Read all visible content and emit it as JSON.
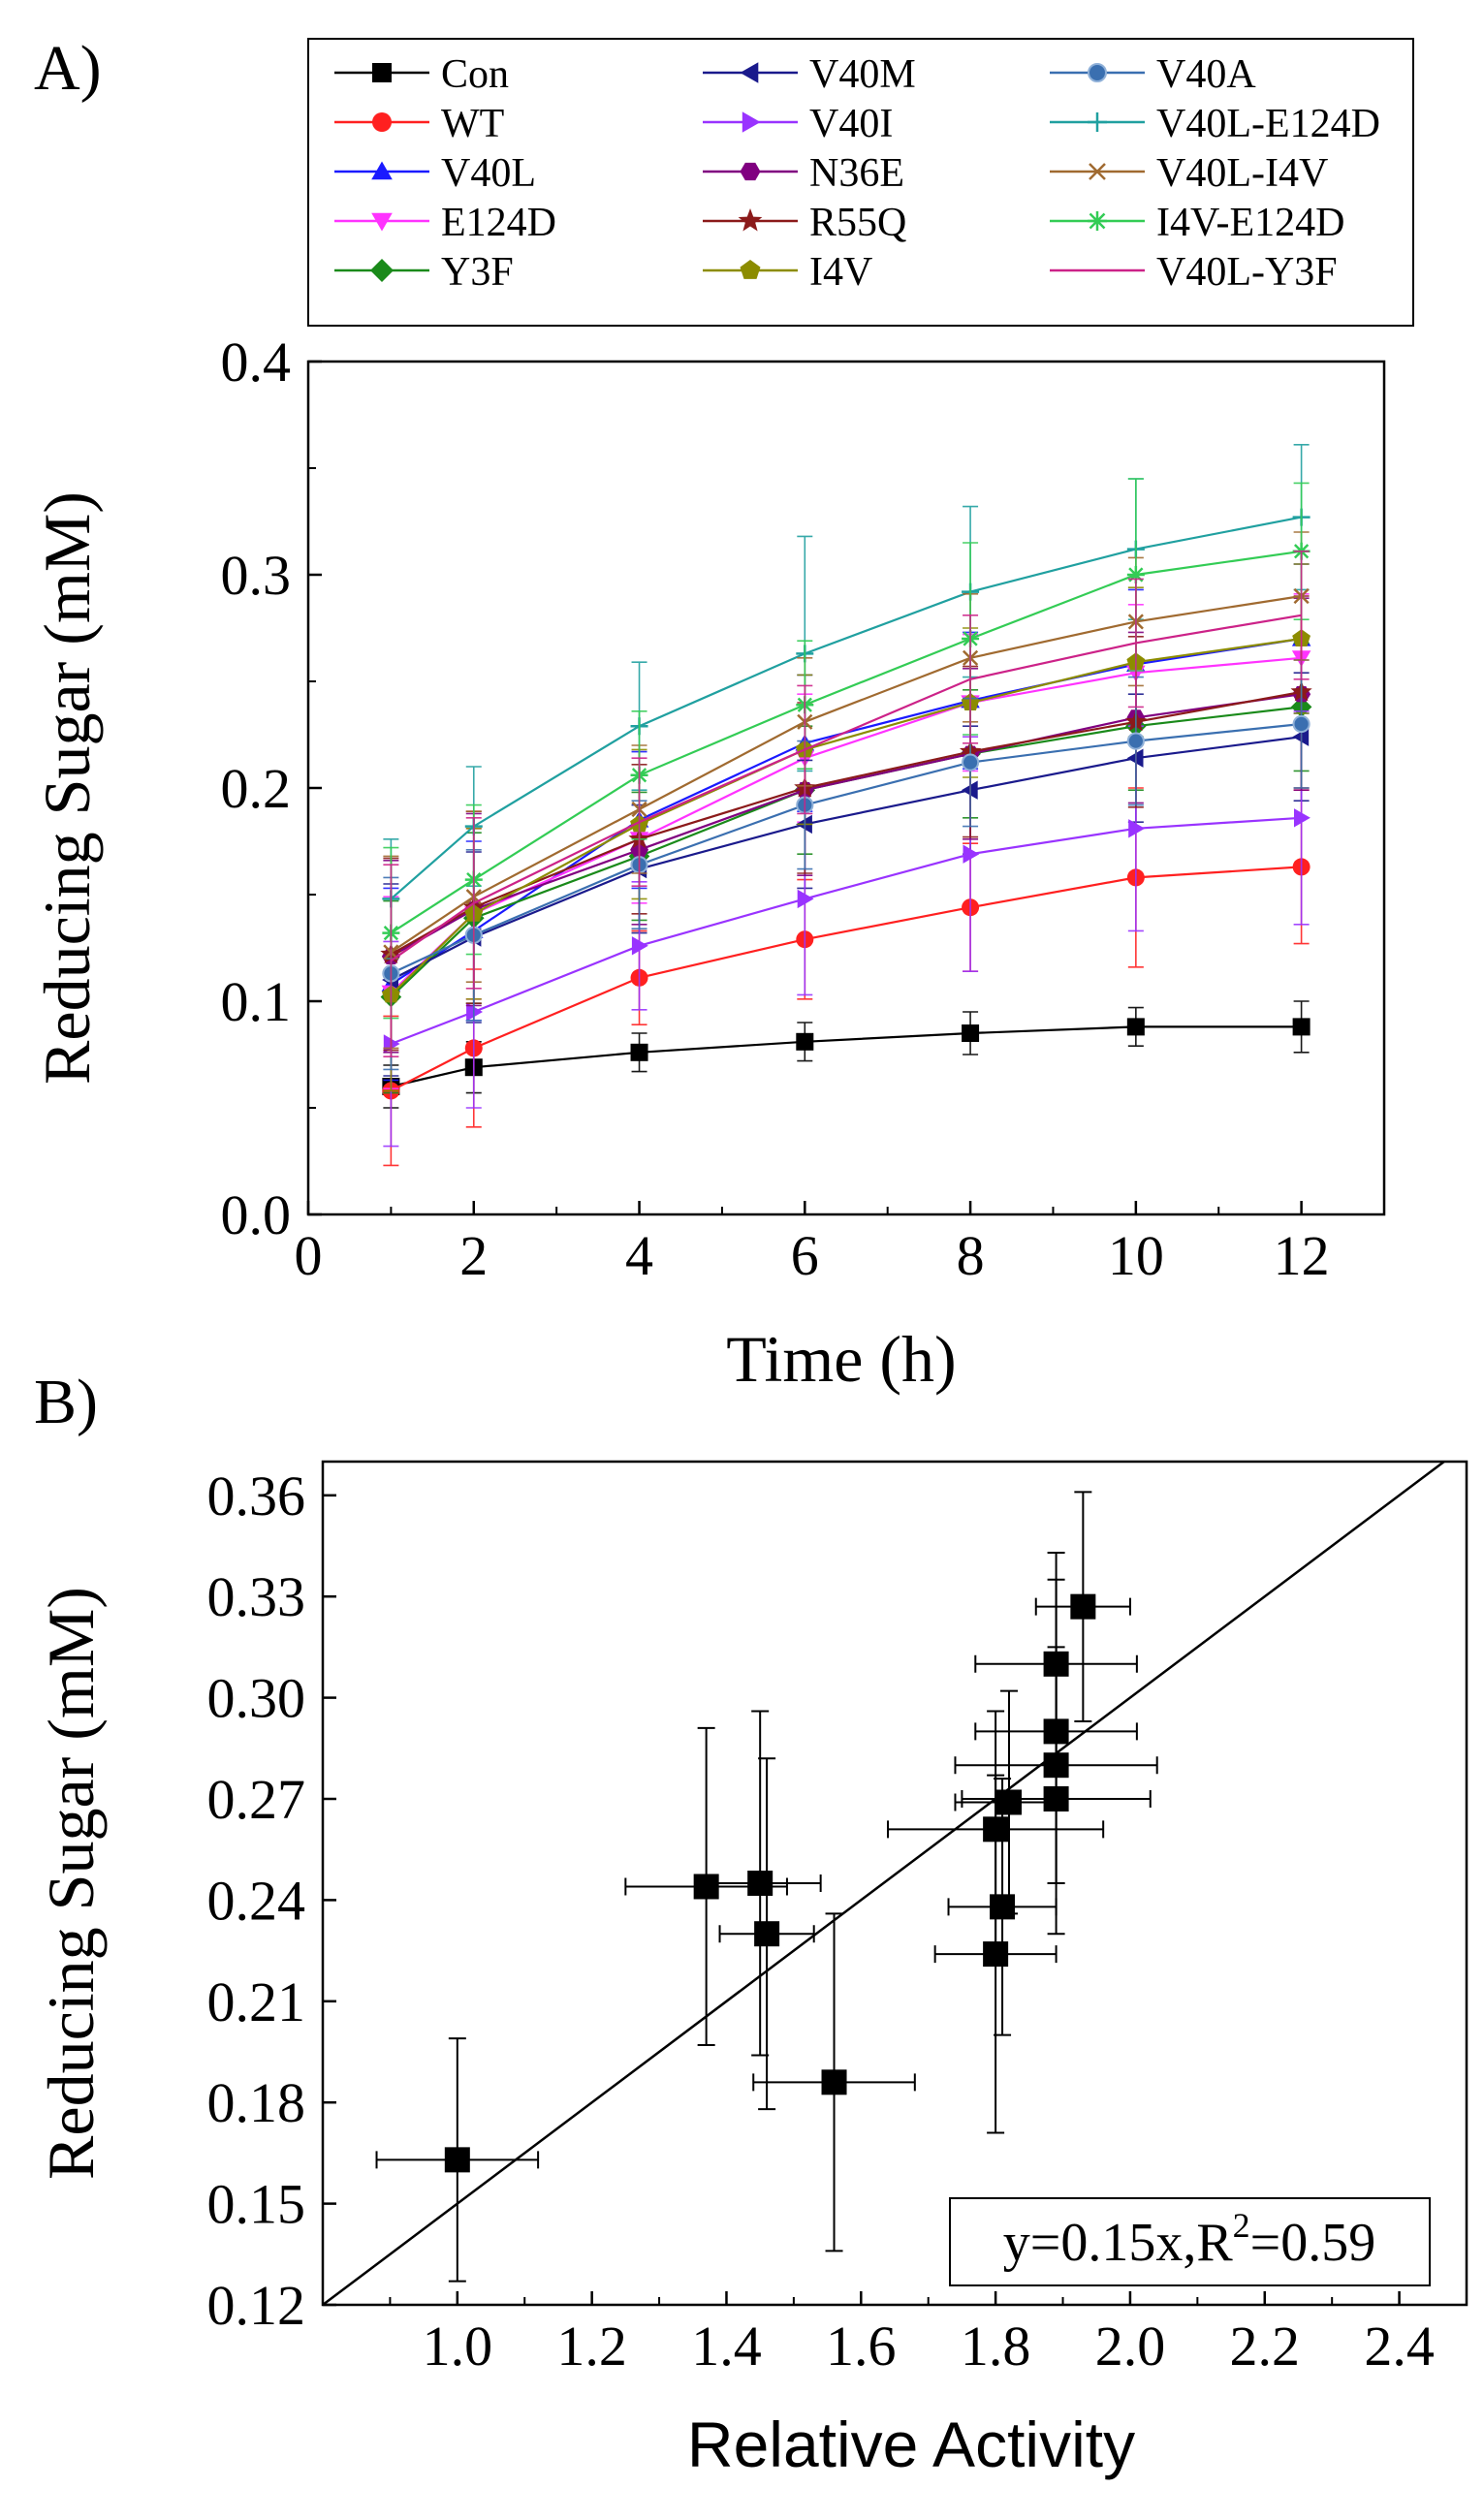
{
  "figure": {
    "panel_a_label": "A)",
    "panel_b_label": "B)"
  },
  "chart_data": [
    {
      "type": "line",
      "panel": "A)",
      "title": "",
      "xlabel": "Time (h)",
      "ylabel": "Reducing Sugar (mM)",
      "xlim": [
        0,
        13
      ],
      "ylim": [
        0.0,
        0.4
      ],
      "xticks": [
        0,
        2,
        4,
        6,
        8,
        10,
        12
      ],
      "yticks": [
        "0.0",
        "0.1",
        "0.2",
        "0.3",
        "0.4"
      ],
      "x": [
        1,
        2,
        4,
        6,
        8,
        10,
        12
      ],
      "legend_position": "top",
      "grid": false,
      "series": [
        {
          "name": "Con",
          "color": "#000000",
          "marker": "square",
          "values": [
            0.06,
            0.069,
            0.076,
            0.081,
            0.085,
            0.088,
            0.088
          ],
          "errors": [
            0.01,
            0.012,
            0.009,
            0.009,
            0.01,
            0.009,
            0.012
          ]
        },
        {
          "name": "WT",
          "color": "#ff2020",
          "marker": "circle",
          "values": [
            0.058,
            0.078,
            0.111,
            0.129,
            0.144,
            0.158,
            0.163
          ],
          "errors": [
            0.035,
            0.037,
            0.022,
            0.028,
            0.03,
            0.042,
            0.036
          ]
        },
        {
          "name": "V40L",
          "color": "#1a1aff",
          "marker": "triangle-up",
          "values": [
            0.108,
            0.133,
            0.185,
            0.221,
            0.241,
            0.258,
            0.27
          ],
          "errors": [
            0.045,
            0.042,
            0.032,
            0.032,
            0.032,
            0.035,
            0.035
          ]
        },
        {
          "name": "E124D",
          "color": "#ff33ff",
          "marker": "triangle-down",
          "values": [
            0.104,
            0.141,
            0.176,
            0.214,
            0.24,
            0.254,
            0.261
          ],
          "errors": [
            0.045,
            0.04,
            0.03,
            0.03,
            0.032,
            0.032,
            0.03
          ]
        },
        {
          "name": "Y3F",
          "color": "#1a8a1a",
          "marker": "diamond",
          "values": [
            0.102,
            0.139,
            0.168,
            0.199,
            0.216,
            0.229,
            0.238
          ],
          "errors": [
            0.045,
            0.04,
            0.03,
            0.03,
            0.03,
            0.03,
            0.03
          ]
        },
        {
          "name": "V40M",
          "color": "#1a1a8c",
          "marker": "triangle-left",
          "values": [
            0.11,
            0.13,
            0.162,
            0.183,
            0.199,
            0.214,
            0.224
          ],
          "errors": [
            0.045,
            0.04,
            0.03,
            0.03,
            0.03,
            0.03,
            0.03
          ]
        },
        {
          "name": "V40I",
          "color": "#9933ff",
          "marker": "triangle-right",
          "values": [
            0.08,
            0.095,
            0.126,
            0.148,
            0.169,
            0.181,
            0.186
          ],
          "errors": [
            0.048,
            0.045,
            0.03,
            0.045,
            0.055,
            0.048,
            0.05
          ]
        },
        {
          "name": "N36E",
          "color": "#800080",
          "marker": "hexagon",
          "values": [
            0.121,
            0.143,
            0.171,
            0.199,
            0.216,
            0.233,
            0.244
          ],
          "errors": [
            0.045,
            0.045,
            0.035,
            0.04,
            0.04,
            0.04,
            0.045
          ]
        },
        {
          "name": "R55Q",
          "color": "#8b1a1a",
          "marker": "star",
          "values": [
            0.122,
            0.144,
            0.176,
            0.2,
            0.217,
            0.231,
            0.245
          ],
          "errors": [
            0.045,
            0.045,
            0.035,
            0.04,
            0.04,
            0.04,
            0.045
          ]
        },
        {
          "name": "I4V",
          "color": "#8c8c00",
          "marker": "pentagon",
          "values": [
            0.103,
            0.141,
            0.183,
            0.218,
            0.24,
            0.259,
            0.27
          ],
          "errors": [
            0.045,
            0.04,
            0.035,
            0.035,
            0.035,
            0.035,
            0.035
          ]
        },
        {
          "name": "V40A",
          "color": "#3a6fb0",
          "marker": "ball",
          "values": [
            0.113,
            0.131,
            0.164,
            0.192,
            0.212,
            0.222,
            0.23
          ],
          "errors": [
            0.045,
            0.04,
            0.03,
            0.03,
            0.03,
            0.03,
            0.03
          ]
        },
        {
          "name": "V40L-E124D",
          "color": "#20a0a0",
          "marker": "plus",
          "values": [
            0.148,
            0.182,
            0.229,
            0.263,
            0.292,
            0.312,
            0.327
          ],
          "errors": [
            0.028,
            0.028,
            0.03,
            0.055,
            0.04,
            0.033,
            0.034
          ]
        },
        {
          "name": "V40L-I4V",
          "color": "#a06a30",
          "marker": "x",
          "values": [
            0.123,
            0.149,
            0.19,
            0.231,
            0.261,
            0.278,
            0.29
          ],
          "errors": [
            0.045,
            0.04,
            0.03,
            0.03,
            0.03,
            0.03,
            0.03
          ]
        },
        {
          "name": "I4V-E124D",
          "color": "#33cc55",
          "marker": "asterisk",
          "values": [
            0.132,
            0.157,
            0.206,
            0.239,
            0.27,
            0.3,
            0.311
          ],
          "errors": [
            0.04,
            0.035,
            0.03,
            0.03,
            0.045,
            0.045,
            0.032
          ]
        },
        {
          "name": "V40L-Y3F",
          "color": "#cc2288",
          "marker": "none",
          "values": [
            0.119,
            0.146,
            0.184,
            0.218,
            0.251,
            0.268,
            0.281
          ],
          "errors": [
            0.045,
            0.04,
            0.03,
            0.03,
            0.03,
            0.03,
            0.03
          ]
        }
      ]
    },
    {
      "type": "scatter",
      "panel": "B)",
      "title": "",
      "xlabel": "Relative Activity",
      "ylabel": "Reducing Sugar (mM)",
      "xlim": [
        0.8,
        2.5
      ],
      "ylim": [
        0.12,
        0.37
      ],
      "xticks": [
        "1.0",
        "1.2",
        "1.4",
        "1.6",
        "1.8",
        "2.0",
        "2.2",
        "2.4"
      ],
      "yticks": [
        "0.12",
        "0.15",
        "0.18",
        "0.21",
        "0.24",
        "0.27",
        "0.30",
        "0.33",
        "0.36"
      ],
      "grid": false,
      "fit_line": {
        "slope": 0.15,
        "intercept": 0
      },
      "annotation": {
        "prefix": "y=0.15x,R",
        "superscript": "2",
        "suffix": "=0.59",
        "position": "bottom-right"
      },
      "points": [
        {
          "x": 1.0,
          "y": 0.163,
          "xerr": 0.12,
          "yerr": 0.036
        },
        {
          "x": 1.37,
          "y": 0.244,
          "xerr": 0.12,
          "yerr": 0.047
        },
        {
          "x": 1.45,
          "y": 0.245,
          "xerr": 0.09,
          "yerr": 0.051
        },
        {
          "x": 1.46,
          "y": 0.23,
          "xerr": 0.07,
          "yerr": 0.052
        },
        {
          "x": 1.56,
          "y": 0.186,
          "xerr": 0.12,
          "yerr": 0.05
        },
        {
          "x": 1.8,
          "y": 0.224,
          "xerr": 0.09,
          "yerr": 0.053
        },
        {
          "x": 1.8,
          "y": 0.261,
          "xerr": 0.16,
          "yerr": 0.035
        },
        {
          "x": 1.81,
          "y": 0.238,
          "xerr": 0.08,
          "yerr": 0.038
        },
        {
          "x": 1.82,
          "y": 0.269,
          "xerr": 0.08,
          "yerr": 0.033
        },
        {
          "x": 1.89,
          "y": 0.27,
          "xerr": 0.14,
          "yerr": 0.04
        },
        {
          "x": 1.89,
          "y": 0.28,
          "xerr": 0.15,
          "yerr": 0.035
        },
        {
          "x": 1.89,
          "y": 0.29,
          "xerr": 0.12,
          "yerr": 0.045
        },
        {
          "x": 1.89,
          "y": 0.31,
          "xerr": 0.12,
          "yerr": 0.033
        },
        {
          "x": 1.93,
          "y": 0.327,
          "xerr": 0.07,
          "yerr": 0.034
        }
      ]
    }
  ]
}
